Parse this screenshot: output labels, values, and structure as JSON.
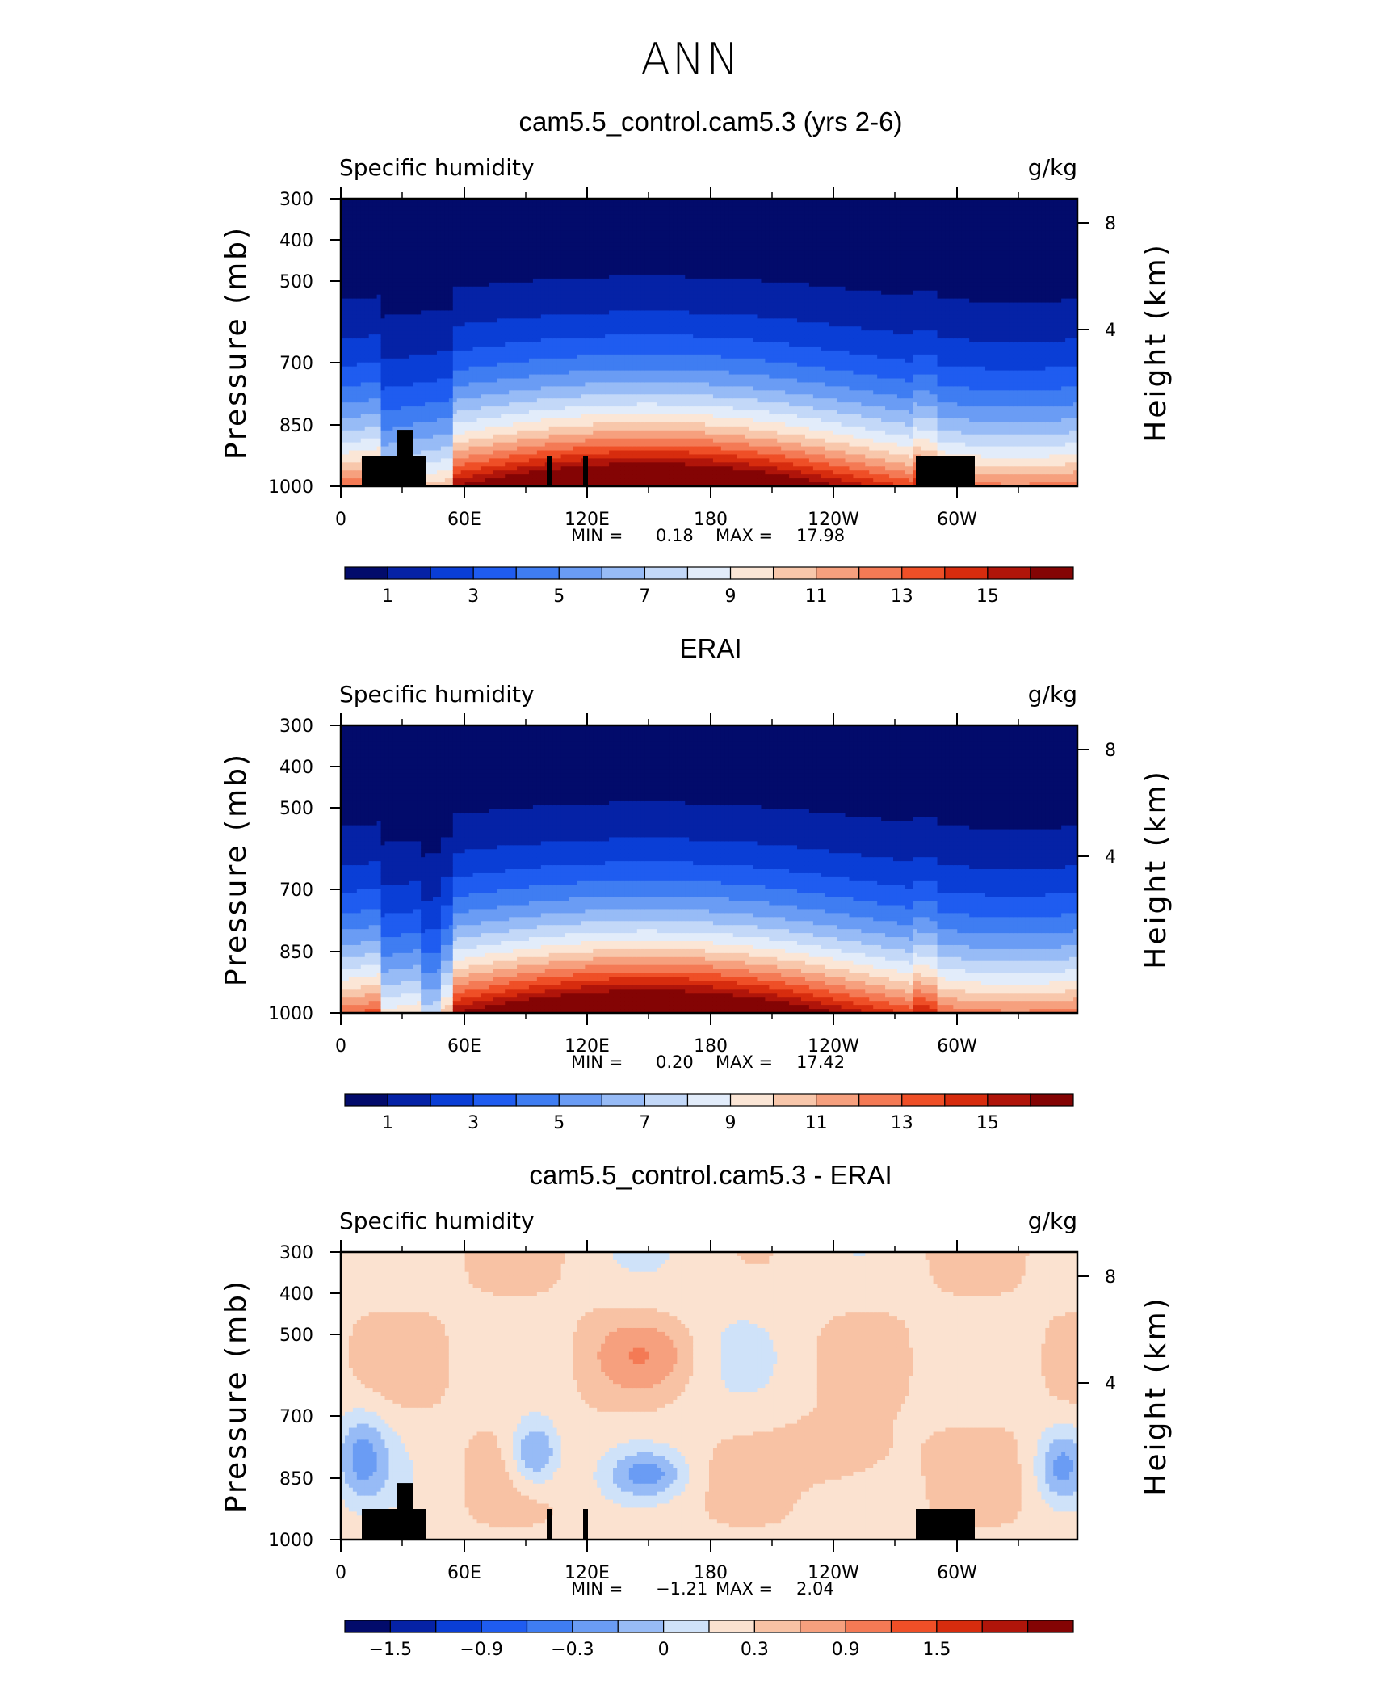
{
  "figure": {
    "title": "ANN"
  },
  "chart_data": [
    {
      "type": "heatmap",
      "title": "cam5.5_control.cam5.3 (yrs 2-6)",
      "variable_label": "Specific humidity",
      "units_label": "g/kg",
      "ylabel": "Pressure (mb)",
      "ylabel_right": "Height (km)",
      "x_ticks": [
        "0",
        "60E",
        "120E",
        "180",
        "120W",
        "60W"
      ],
      "y_ticks": [
        "300",
        "400",
        "500",
        "700",
        "850",
        "1000"
      ],
      "y_right_ticks": [
        "8",
        "4"
      ],
      "stats": {
        "min_label": "MIN =",
        "min": "0.18",
        "max_label": "MAX =",
        "max": "17.98"
      },
      "colorbar_labels": [
        "1",
        "3",
        "5",
        "7",
        "9",
        "11",
        "13",
        "15"
      ],
      "colors": [
        "#020b6b",
        "#0522a6",
        "#0a3ed6",
        "#1f5cf0",
        "#3f7df2",
        "#6a9cf4",
        "#97bbf6",
        "#c3d8f8",
        "#e2ecfa",
        "#fbe6d6",
        "#f8c7ab",
        "#f6a07e",
        "#f47a55",
        "#ef4f27",
        "#d72c0e",
        "#b0150a",
        "#840404"
      ],
      "mask": "land"
    },
    {
      "type": "heatmap",
      "title": "ERAI",
      "variable_label": "Specific humidity",
      "units_label": "g/kg",
      "ylabel": "Pressure (mb)",
      "ylabel_right": "Height (km)",
      "x_ticks": [
        "0",
        "60E",
        "120E",
        "180",
        "120W",
        "60W"
      ],
      "y_ticks": [
        "300",
        "400",
        "500",
        "700",
        "850",
        "1000"
      ],
      "y_right_ticks": [
        "8",
        "4"
      ],
      "stats": {
        "min_label": "MIN =",
        "min": "0.20",
        "max_label": "MAX =",
        "max": "17.42"
      },
      "colorbar_labels": [
        "1",
        "3",
        "5",
        "7",
        "9",
        "11",
        "13",
        "15"
      ],
      "colors": [
        "#020b6b",
        "#0522a6",
        "#0a3ed6",
        "#1f5cf0",
        "#3f7df2",
        "#6a9cf4",
        "#97bbf6",
        "#c3d8f8",
        "#e2ecfa",
        "#fbe6d6",
        "#f8c7ab",
        "#f6a07e",
        "#f47a55",
        "#ef4f27",
        "#d72c0e",
        "#b0150a",
        "#840404"
      ],
      "mask": "none"
    },
    {
      "type": "heatmap",
      "title": "cam5.5_control.cam5.3 - ERAI",
      "variable_label": "Specific humidity",
      "units_label": "g/kg",
      "ylabel": "Pressure (mb)",
      "ylabel_right": "Height (km)",
      "x_ticks": [
        "0",
        "60E",
        "120E",
        "180",
        "120W",
        "60W"
      ],
      "y_ticks": [
        "300",
        "400",
        "500",
        "700",
        "850",
        "1000"
      ],
      "y_right_ticks": [
        "8",
        "4"
      ],
      "stats": {
        "min_label": "MIN =",
        "min": "−1.21",
        "max_label": "MAX =",
        "max": "2.04"
      },
      "colorbar_labels": [
        "−1.5",
        "−0.9",
        "−0.3",
        "0",
        "0.3",
        "0.9",
        "1.5"
      ],
      "colors": [
        "#020b6b",
        "#0522a6",
        "#0a3ed6",
        "#1f5cf0",
        "#3f7df2",
        "#6a9cf4",
        "#97bbf6",
        "#cfe2f9",
        "#fbe2d0",
        "#f8c2a4",
        "#f6a07e",
        "#f47a55",
        "#ef4f27",
        "#d72c0e",
        "#b0150a",
        "#840404"
      ],
      "mask": "land"
    }
  ]
}
